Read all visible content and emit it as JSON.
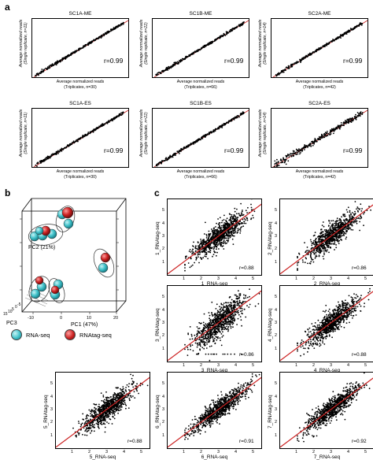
{
  "panels": {
    "a": "a",
    "b": "b",
    "c": "c"
  },
  "colors": {
    "points": "#000000",
    "diagonal": "#cc2222",
    "rnaseq": "#3fc1c9",
    "rnatag": "#cc2222"
  },
  "panel_a": {
    "ylabel_line1": "Average normalized reads",
    "ylabel_line2": "(Single replicate, n=11)",
    "plots": [
      {
        "title": "SC1A-ME",
        "r": "r=0.99",
        "ylabel2": "(Single replicate, n=11)",
        "xlabel1": "Average normalized reads",
        "xlabel2": "(Triplicates, n=30)"
      },
      {
        "title": "SC1B-ME",
        "r": "r=0.99",
        "ylabel2": "(Single replicate, n=22)",
        "xlabel1": "Average normalized reads",
        "xlabel2": "(Triplicates, n=66)"
      },
      {
        "title": "SC2A-ME",
        "r": "r=0.99",
        "ylabel2": "(Single replicate, n=14)",
        "xlabel1": "Average normalized reads",
        "xlabel2": "(Triplicates, n=42)"
      },
      {
        "title": "SC1A-ES",
        "r": "r=0.99",
        "ylabel2": "(Single replicate, n=11)",
        "xlabel1": "Average normalized reads",
        "xlabel2": "(Triplicates, n=30)"
      },
      {
        "title": "SC1B-ES",
        "r": "r=0.99",
        "ylabel2": "(Single replicate, n=22)",
        "xlabel1": "Average normalized reads",
        "xlabel2": "(Triplicates, n=66)"
      },
      {
        "title": "SC2A-ES",
        "r": "r=0.99",
        "ylabel2": "(Single replicate, n=14)",
        "xlabel1": "Average normalized reads",
        "xlabel2": "(Triplicates, n=42)"
      }
    ]
  },
  "panel_b": {
    "pc1_label": "PC1 (47%)",
    "pc2_label": "PC2 (21%)",
    "pc3_label": "PC3",
    "x_ticks": [
      "-10",
      "0",
      "10",
      "20"
    ],
    "z_ticks": [
      "15",
      "10",
      "5",
      "0",
      "-5"
    ],
    "legend": [
      {
        "label": "RNA-seq",
        "color": "#3fc1c9"
      },
      {
        "label": "RNAtag-seq",
        "color": "#cc2222"
      }
    ]
  },
  "panel_c": {
    "plots": [
      {
        "xlabel": "1_RNA-seq",
        "ylabel": "1_RNAtag-seq",
        "r": "r=0.88"
      },
      {
        "xlabel": "2_RNA-seq",
        "ylabel": "2_RNAtag-seq",
        "r": "r=0.86"
      },
      {
        "xlabel": "3_RNA-seq",
        "ylabel": "3_RNAtag-seq",
        "r": "r=0.86"
      },
      {
        "xlabel": "4_RNA-seq",
        "ylabel": "4_RNAtag-seq",
        "r": "r=0.88"
      },
      {
        "xlabel": "5_RNA-seq",
        "ylabel": "5_RNAtag-seq",
        "r": "r=0.88"
      },
      {
        "xlabel": "6_RNA-seq",
        "ylabel": "6_RNAtag-seq",
        "r": "r=0.91"
      },
      {
        "xlabel": "7_RNA-seq",
        "ylabel": "7_RNAtag-seq",
        "r": "r=0.92"
      }
    ]
  },
  "chart_data": [
    {
      "type": "scatter",
      "title": "SC1A-ME",
      "annotation": "r=0.99",
      "grid": false
    },
    {
      "type": "scatter",
      "title": "SC1B-ME",
      "annotation": "r=0.99",
      "grid": false
    },
    {
      "type": "scatter",
      "title": "SC2A-ME",
      "annotation": "r=0.99",
      "grid": false
    },
    {
      "type": "scatter",
      "title": "SC1A-ES",
      "annotation": "r=0.99",
      "grid": false
    },
    {
      "type": "scatter",
      "title": "SC1B-ES",
      "annotation": "r=0.99",
      "grid": false
    },
    {
      "type": "scatter",
      "title": "SC2A-ES",
      "annotation": "r=0.99",
      "grid": false
    },
    {
      "type": "scatter",
      "xlabel": "PC1 (47%)",
      "ylabel": "PC2 (21%)",
      "zlabel": "PC3",
      "series": [
        {
          "name": "RNA-seq"
        },
        {
          "name": "RNAtag-seq"
        }
      ]
    },
    {
      "type": "scatter",
      "xlabel": "1_RNA-seq",
      "ylabel": "1_RNAtag-seq",
      "annotation": "r=0.88",
      "xlim": [
        0,
        5.5
      ],
      "ylim": [
        0,
        6
      ],
      "x_ticks": [
        "1",
        "2",
        "3",
        "4",
        "5"
      ],
      "y_ticks": [
        "1",
        "2",
        "3",
        "4",
        "5"
      ]
    },
    {
      "type": "scatter",
      "xlabel": "2_RNA-seq",
      "ylabel": "2_RNAtag-seq",
      "annotation": "r=0.86",
      "xlim": [
        0,
        5.5
      ],
      "ylim": [
        0,
        6
      ],
      "x_ticks": [
        "1",
        "2",
        "3",
        "4",
        "5"
      ],
      "y_ticks": [
        "1",
        "2",
        "3",
        "4",
        "5"
      ]
    },
    {
      "type": "scatter",
      "xlabel": "3_RNA-seq",
      "ylabel": "3_RNAtag-seq",
      "annotation": "r=0.86",
      "xlim": [
        0,
        5.5
      ],
      "ylim": [
        0,
        6
      ],
      "x_ticks": [
        "1",
        "2",
        "3",
        "4",
        "5"
      ],
      "y_ticks": [
        "1",
        "2",
        "3",
        "4",
        "5"
      ]
    },
    {
      "type": "scatter",
      "xlabel": "4_RNA-seq",
      "ylabel": "4_RNAtag-seq",
      "annotation": "r=0.88",
      "xlim": [
        0,
        5.5
      ],
      "ylim": [
        0,
        6
      ],
      "x_ticks": [
        "1",
        "2",
        "3",
        "4",
        "5"
      ],
      "y_ticks": [
        "1",
        "2",
        "3",
        "4",
        "5"
      ]
    },
    {
      "type": "scatter",
      "xlabel": "5_RNA-seq",
      "ylabel": "5_RNAtag-seq",
      "annotation": "r=0.88",
      "xlim": [
        0,
        5.5
      ],
      "ylim": [
        0,
        6
      ],
      "x_ticks": [
        "1",
        "2",
        "3",
        "4",
        "5"
      ],
      "y_ticks": [
        "1",
        "2",
        "3",
        "4",
        "5"
      ]
    },
    {
      "type": "scatter",
      "xlabel": "6_RNA-seq",
      "ylabel": "6_RNAtag-seq",
      "annotation": "r=0.91",
      "xlim": [
        0,
        5.5
      ],
      "ylim": [
        0,
        6
      ],
      "x_ticks": [
        "1",
        "2",
        "3",
        "4",
        "5"
      ],
      "y_ticks": [
        "1",
        "2",
        "3",
        "4",
        "5"
      ]
    },
    {
      "type": "scatter",
      "xlabel": "7_RNA-seq",
      "ylabel": "7_RNAtag-seq",
      "annotation": "r=0.92",
      "xlim": [
        0,
        5.5
      ],
      "ylim": [
        0,
        6
      ],
      "x_ticks": [
        "1",
        "2",
        "3",
        "4",
        "5"
      ],
      "y_ticks": [
        "1",
        "2",
        "3",
        "4",
        "5"
      ]
    }
  ]
}
